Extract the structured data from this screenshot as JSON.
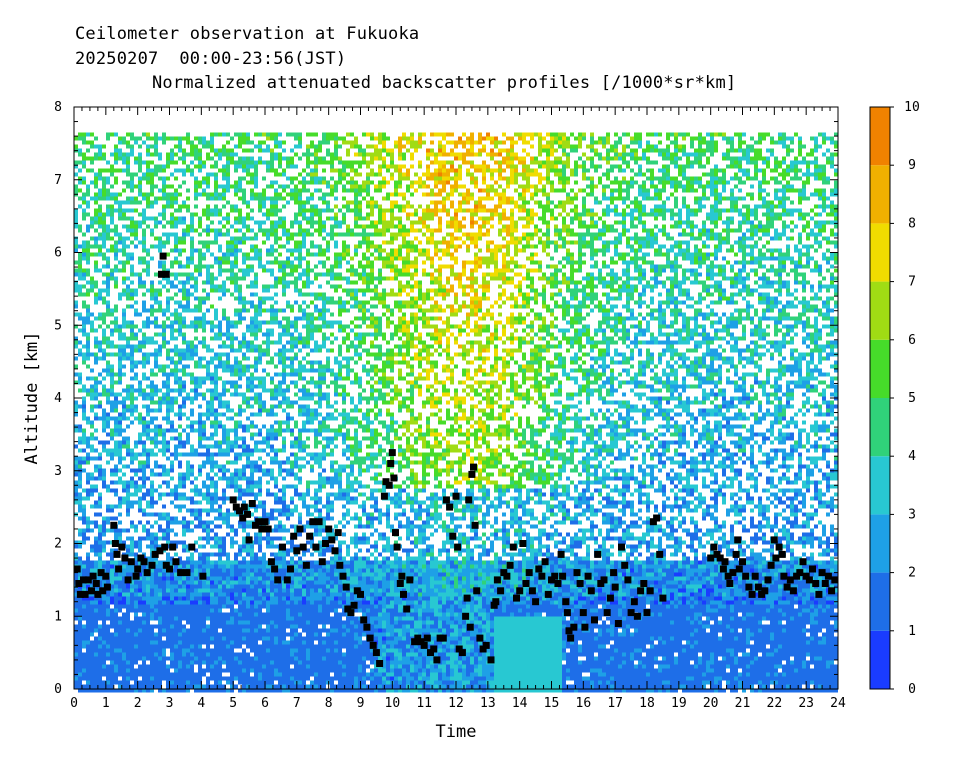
{
  "titles": {
    "line1": "Ceilometer observation at Fukuoka",
    "line2": "20250207  00:00-23:56(JST)",
    "line3": "Normalized attenuated backscatter profiles [/1000*sr*km]"
  },
  "chart_data": {
    "type": "heatmap",
    "xlabel": "Time",
    "ylabel": "Altitude [km]",
    "xlim": [
      0,
      24
    ],
    "ylim": [
      0,
      8
    ],
    "x_ticks": [
      "0",
      "1",
      "2",
      "3",
      "4",
      "5",
      "6",
      "7",
      "8",
      "9",
      "10",
      "11",
      "12",
      "13",
      "14",
      "15",
      "16",
      "17",
      "18",
      "19",
      "20",
      "21",
      "22",
      "23",
      "24"
    ],
    "y_ticks": [
      "0",
      "1",
      "2",
      "3",
      "4",
      "5",
      "6",
      "7",
      "8"
    ],
    "data_top_altitude_km": 7.65,
    "colorbar": {
      "min": 0,
      "max": 10,
      "ticks": [
        "0",
        "1",
        "2",
        "3",
        "4",
        "5",
        "6",
        "7",
        "8",
        "9",
        "10"
      ],
      "colors": [
        "#1a3cff",
        "#1e6ee8",
        "#1ea0e6",
        "#28c8d2",
        "#30d27a",
        "#46dc2a",
        "#a0dc14",
        "#f0dc00",
        "#f0b000",
        "#f08200",
        "#f04a00"
      ]
    },
    "cloud_base_series": {
      "name": "",
      "points": [
        [
          0.1,
          1.65
        ],
        [
          0.15,
          1.45
        ],
        [
          0.2,
          1.3
        ],
        [
          0.3,
          1.5
        ],
        [
          0.35,
          1.3
        ],
        [
          0.45,
          1.5
        ],
        [
          0.55,
          1.35
        ],
        [
          0.6,
          1.55
        ],
        [
          0.7,
          1.45
        ],
        [
          0.75,
          1.3
        ],
        [
          0.85,
          1.6
        ],
        [
          0.9,
          1.35
        ],
        [
          1.0,
          1.55
        ],
        [
          1.05,
          1.4
        ],
        [
          1.25,
          2.25
        ],
        [
          1.3,
          2.0
        ],
        [
          1.35,
          1.85
        ],
        [
          1.4,
          1.65
        ],
        [
          1.5,
          1.95
        ],
        [
          1.6,
          1.8
        ],
        [
          1.7,
          1.5
        ],
        [
          1.8,
          1.75
        ],
        [
          1.95,
          1.55
        ],
        [
          2.0,
          1.65
        ],
        [
          2.1,
          1.8
        ],
        [
          2.2,
          1.75
        ],
        [
          2.3,
          1.6
        ],
        [
          2.45,
          1.7
        ],
        [
          2.55,
          1.85
        ],
        [
          2.7,
          1.9
        ],
        [
          2.85,
          1.95
        ],
        [
          2.9,
          1.7
        ],
        [
          3.0,
          1.65
        ],
        [
          3.1,
          1.95
        ],
        [
          3.2,
          1.75
        ],
        [
          3.35,
          1.6
        ],
        [
          3.55,
          1.6
        ],
        [
          3.7,
          1.95
        ],
        [
          4.05,
          1.55
        ],
        [
          2.8,
          5.95
        ],
        [
          2.75,
          5.7
        ],
        [
          2.9,
          5.7
        ],
        [
          5.0,
          2.6
        ],
        [
          5.1,
          2.5
        ],
        [
          5.2,
          2.45
        ],
        [
          5.3,
          2.35
        ],
        [
          5.35,
          2.5
        ],
        [
          5.45,
          2.4
        ],
        [
          5.5,
          2.05
        ],
        [
          5.6,
          2.55
        ],
        [
          5.7,
          2.25
        ],
        [
          5.8,
          2.3
        ],
        [
          5.9,
          2.2
        ],
        [
          6.0,
          2.3
        ],
        [
          6.1,
          2.2
        ],
        [
          6.2,
          1.75
        ],
        [
          6.3,
          1.65
        ],
        [
          6.4,
          1.5
        ],
        [
          6.55,
          1.95
        ],
        [
          6.7,
          1.5
        ],
        [
          6.8,
          1.65
        ],
        [
          6.9,
          2.1
        ],
        [
          7.0,
          1.9
        ],
        [
          7.1,
          2.2
        ],
        [
          7.2,
          1.95
        ],
        [
          7.3,
          1.7
        ],
        [
          7.4,
          2.1
        ],
        [
          7.5,
          2.3
        ],
        [
          7.6,
          1.95
        ],
        [
          7.7,
          2.3
        ],
        [
          7.8,
          1.75
        ],
        [
          7.9,
          2.0
        ],
        [
          8.0,
          2.2
        ],
        [
          8.1,
          2.05
        ],
        [
          8.2,
          1.9
        ],
        [
          8.3,
          2.15
        ],
        [
          8.35,
          1.7
        ],
        [
          8.45,
          1.55
        ],
        [
          8.55,
          1.4
        ],
        [
          8.6,
          1.1
        ],
        [
          8.7,
          1.05
        ],
        [
          8.8,
          1.15
        ],
        [
          8.9,
          1.35
        ],
        [
          9.0,
          1.3
        ],
        [
          9.1,
          0.95
        ],
        [
          9.2,
          0.85
        ],
        [
          9.3,
          0.7
        ],
        [
          9.4,
          0.6
        ],
        [
          9.5,
          0.5
        ],
        [
          9.6,
          0.35
        ],
        [
          9.75,
          2.65
        ],
        [
          9.8,
          2.85
        ],
        [
          9.9,
          2.8
        ],
        [
          9.95,
          3.1
        ],
        [
          10.0,
          3.25
        ],
        [
          10.05,
          2.9
        ],
        [
          10.1,
          2.15
        ],
        [
          10.15,
          1.95
        ],
        [
          10.25,
          1.45
        ],
        [
          10.3,
          1.55
        ],
        [
          10.35,
          1.3
        ],
        [
          10.45,
          1.1
        ],
        [
          10.55,
          1.5
        ],
        [
          10.7,
          0.65
        ],
        [
          10.8,
          0.7
        ],
        [
          10.9,
          0.65
        ],
        [
          11.0,
          0.6
        ],
        [
          11.1,
          0.7
        ],
        [
          11.2,
          0.5
        ],
        [
          11.3,
          0.55
        ],
        [
          11.4,
          0.4
        ],
        [
          11.5,
          0.7
        ],
        [
          11.6,
          0.7
        ],
        [
          11.7,
          2.6
        ],
        [
          11.8,
          2.5
        ],
        [
          11.9,
          2.1
        ],
        [
          12.0,
          2.65
        ],
        [
          12.05,
          1.95
        ],
        [
          12.1,
          0.55
        ],
        [
          12.2,
          0.5
        ],
        [
          12.3,
          1.0
        ],
        [
          12.35,
          1.25
        ],
        [
          12.4,
          2.6
        ],
        [
          12.45,
          0.85
        ],
        [
          12.5,
          2.95
        ],
        [
          12.55,
          3.05
        ],
        [
          12.6,
          2.25
        ],
        [
          12.65,
          1.35
        ],
        [
          12.75,
          0.7
        ],
        [
          12.85,
          0.55
        ],
        [
          12.95,
          0.6
        ],
        [
          13.1,
          0.4
        ],
        [
          13.2,
          1.15
        ],
        [
          13.25,
          1.2
        ],
        [
          13.3,
          1.5
        ],
        [
          13.4,
          1.35
        ],
        [
          13.5,
          1.6
        ],
        [
          13.6,
          1.55
        ],
        [
          13.7,
          1.7
        ],
        [
          13.8,
          1.95
        ],
        [
          13.9,
          1.25
        ],
        [
          14.0,
          1.35
        ],
        [
          14.1,
          2.0
        ],
        [
          14.2,
          1.45
        ],
        [
          14.3,
          1.6
        ],
        [
          14.4,
          1.35
        ],
        [
          14.5,
          1.2
        ],
        [
          14.6,
          1.65
        ],
        [
          14.7,
          1.55
        ],
        [
          14.8,
          1.75
        ],
        [
          14.9,
          1.3
        ],
        [
          15.0,
          1.5
        ],
        [
          15.1,
          1.55
        ],
        [
          15.2,
          1.45
        ],
        [
          15.3,
          1.85
        ],
        [
          15.35,
          1.55
        ],
        [
          15.45,
          1.2
        ],
        [
          15.5,
          1.05
        ],
        [
          15.55,
          0.8
        ],
        [
          15.6,
          0.7
        ],
        [
          15.7,
          0.85
        ],
        [
          15.8,
          1.6
        ],
        [
          15.9,
          1.45
        ],
        [
          16.0,
          1.05
        ],
        [
          16.05,
          0.85
        ],
        [
          16.15,
          1.55
        ],
        [
          16.25,
          1.35
        ],
        [
          16.35,
          0.95
        ],
        [
          16.45,
          1.85
        ],
        [
          16.55,
          1.45
        ],
        [
          16.65,
          1.5
        ],
        [
          16.75,
          1.05
        ],
        [
          16.85,
          1.25
        ],
        [
          16.95,
          1.6
        ],
        [
          17.0,
          1.4
        ],
        [
          17.1,
          0.9
        ],
        [
          17.2,
          1.95
        ],
        [
          17.3,
          1.7
        ],
        [
          17.4,
          1.5
        ],
        [
          17.5,
          1.05
        ],
        [
          17.6,
          1.2
        ],
        [
          17.7,
          1.0
        ],
        [
          17.8,
          1.35
        ],
        [
          17.9,
          1.45
        ],
        [
          18.0,
          1.05
        ],
        [
          18.1,
          1.35
        ],
        [
          18.2,
          2.3
        ],
        [
          18.3,
          2.35
        ],
        [
          18.4,
          1.85
        ],
        [
          18.5,
          1.25
        ],
        [
          20.0,
          1.8
        ],
        [
          20.1,
          1.95
        ],
        [
          20.2,
          1.85
        ],
        [
          20.3,
          1.8
        ],
        [
          20.4,
          1.65
        ],
        [
          20.45,
          1.75
        ],
        [
          20.55,
          1.55
        ],
        [
          20.6,
          1.45
        ],
        [
          20.7,
          1.6
        ],
        [
          20.8,
          1.85
        ],
        [
          20.85,
          2.05
        ],
        [
          20.9,
          1.65
        ],
        [
          21.0,
          1.75
        ],
        [
          21.1,
          1.55
        ],
        [
          21.2,
          1.4
        ],
        [
          21.3,
          1.3
        ],
        [
          21.4,
          1.55
        ],
        [
          21.5,
          1.4
        ],
        [
          21.6,
          1.3
        ],
        [
          21.7,
          1.35
        ],
        [
          21.8,
          1.5
        ],
        [
          21.9,
          1.7
        ],
        [
          22.0,
          2.05
        ],
        [
          22.05,
          1.8
        ],
        [
          22.15,
          1.95
        ],
        [
          22.25,
          1.85
        ],
        [
          22.3,
          1.55
        ],
        [
          22.4,
          1.4
        ],
        [
          22.5,
          1.5
        ],
        [
          22.6,
          1.35
        ],
        [
          22.7,
          1.55
        ],
        [
          22.8,
          1.6
        ],
        [
          22.9,
          1.75
        ],
        [
          23.0,
          1.55
        ],
        [
          23.1,
          1.5
        ],
        [
          23.2,
          1.65
        ],
        [
          23.3,
          1.45
        ],
        [
          23.4,
          1.3
        ],
        [
          23.5,
          1.6
        ],
        [
          23.6,
          1.45
        ],
        [
          23.7,
          1.55
        ],
        [
          23.8,
          1.35
        ],
        [
          23.9,
          1.5
        ]
      ]
    }
  }
}
